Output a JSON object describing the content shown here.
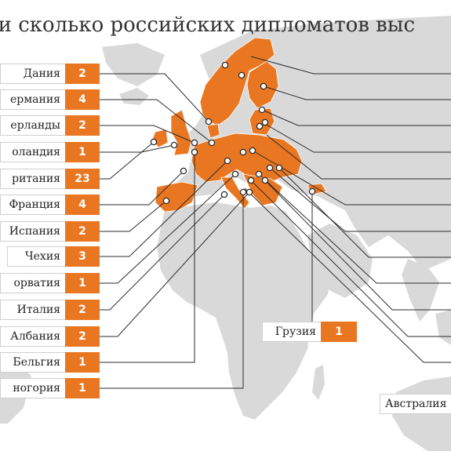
{
  "title": "н и сколько российских дипломатов выс",
  "colors": {
    "sea": "#ffffff",
    "land": "#d9d9d9",
    "highlight": "#e97722",
    "leader": "#2b2b2b",
    "border": "#ffffff"
  },
  "countries": [
    {
      "name": "Дания",
      "count": "2"
    },
    {
      "name": "ермания",
      "count": "4"
    },
    {
      "name": "ерланды",
      "count": "2"
    },
    {
      "name": "оландия",
      "count": "1"
    },
    {
      "name": "ритания",
      "count": "23"
    },
    {
      "name": "Франция",
      "count": "4"
    },
    {
      "name": "Испания",
      "count": "2"
    },
    {
      "name": "Чехия",
      "count": "3"
    },
    {
      "name": "орватия",
      "count": "1"
    },
    {
      "name": "Италия",
      "count": "2"
    },
    {
      "name": "Албания",
      "count": "2"
    },
    {
      "name": "Бельгия",
      "count": "1"
    },
    {
      "name": "ногория",
      "count": "1"
    },
    {
      "name": "Грузия",
      "count": "1"
    },
    {
      "name": "Австралия",
      "count": ""
    }
  ]
}
